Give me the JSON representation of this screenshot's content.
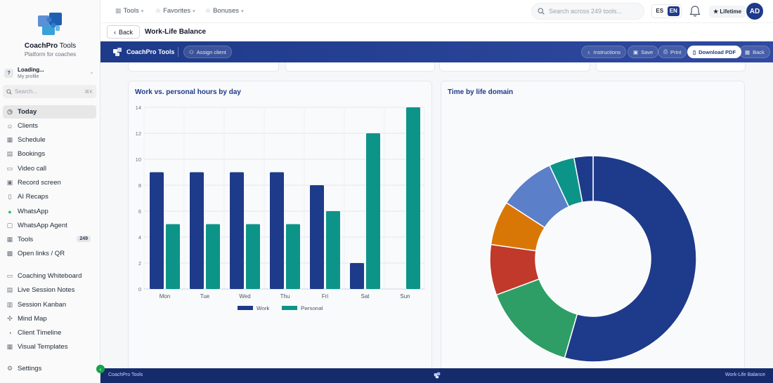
{
  "brand": {
    "name_bold": "CoachPro",
    "name_rest": " Tools",
    "tagline": "Platform for coaches"
  },
  "profile": {
    "initial": "?",
    "name": "Loading...",
    "subtitle": "My profile"
  },
  "sidebar_search": {
    "placeholder": "Search...",
    "shortcut": "⌘K"
  },
  "nav": {
    "today": "Today",
    "clients": "Clients",
    "schedule": "Schedule",
    "bookings": "Bookings",
    "video_call": "Video call",
    "record_screen": "Record screen",
    "ai_recaps": "AI Recaps",
    "whatsapp": "WhatsApp",
    "whatsapp_agent": "WhatsApp Agent",
    "tools": "Tools",
    "tools_count": "249",
    "open_links": "Open links / QR",
    "whiteboard": "Coaching Whiteboard",
    "session_notes": "Live Session Notes",
    "kanban": "Session Kanban",
    "mind_map": "Mind Map",
    "timeline": "Client Timeline",
    "visual_templates": "Visual Templates",
    "settings": "Settings"
  },
  "topbar": {
    "tools": "Tools",
    "favorites": "Favorites",
    "bonuses": "Bonuses",
    "search_placeholder": "Search across 249 tools...",
    "lang_es": "ES",
    "lang_en": "EN",
    "plan": "★ Lifetime",
    "avatar": "AD"
  },
  "page": {
    "back": "Back",
    "title": "Work-Life Balance"
  },
  "toolbar": {
    "name": "CoachPro Tools",
    "assign": "Assign client",
    "instructions": "Instructions",
    "save": "Save",
    "print": "Print",
    "download": "Download PDF",
    "back": "Back"
  },
  "cards": {
    "bar_title": "Work vs. personal hours by day",
    "donut_title": "Time by life domain"
  },
  "chart_data": [
    {
      "type": "bar",
      "title": "Work vs. personal hours by day",
      "categories": [
        "Mon",
        "Tue",
        "Wed",
        "Thu",
        "Fri",
        "Sat",
        "Sun"
      ],
      "series": [
        {
          "name": "Work",
          "values": [
            9,
            9,
            9,
            9,
            8,
            2,
            0
          ],
          "color": "#1e3a8a"
        },
        {
          "name": "Personal",
          "values": [
            5,
            5,
            5,
            5,
            6,
            12,
            14
          ],
          "color": "#0d9488"
        }
      ],
      "ylim": [
        0,
        14
      ],
      "yticks": [
        0,
        2,
        4,
        6,
        8,
        10,
        12,
        14
      ],
      "grid": true,
      "legend": "bottom"
    },
    {
      "type": "pie",
      "title": "Time by life domain",
      "donut": true,
      "values": [
        55,
        15,
        8,
        7,
        9,
        4,
        3
      ],
      "colors": [
        "#1e3a8a",
        "#2e9e66",
        "#c0392b",
        "#d97706",
        "#5b7fc9",
        "#0d9488",
        "#1e3a8a"
      ]
    }
  ],
  "footer": {
    "left": "CoachPro Tools",
    "right": "Work-Life Balance"
  }
}
